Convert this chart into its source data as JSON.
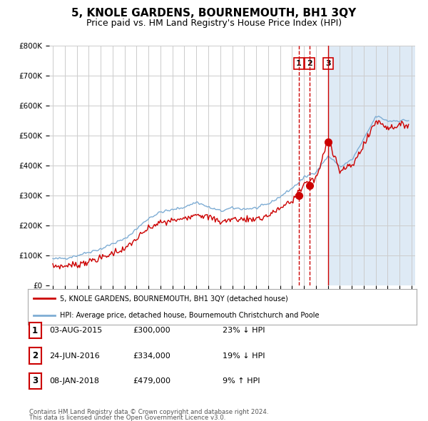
{
  "title": "5, KNOLE GARDENS, BOURNEMOUTH, BH1 3QY",
  "subtitle": "Price paid vs. HM Land Registry's House Price Index (HPI)",
  "title_fontsize": 11,
  "subtitle_fontsize": 9,
  "ylabel_ticks": [
    "£0",
    "£100K",
    "£200K",
    "£300K",
    "£400K",
    "£500K",
    "£600K",
    "£700K",
    "£800K"
  ],
  "ytick_values": [
    0,
    100000,
    200000,
    300000,
    400000,
    500000,
    600000,
    700000,
    800000
  ],
  "ylim": [
    0,
    800000
  ],
  "xlim_start": 1994.7,
  "xlim_end": 2025.3,
  "hpi_color": "#7eadd4",
  "property_color": "#cc0000",
  "sale_line_color": "#cc0000",
  "background_color": "#ffffff",
  "chart_bg_right": "#deeaf5",
  "grid_color": "#cccccc",
  "sales": [
    {
      "num": 1,
      "date": "03-AUG-2015",
      "price": 300000,
      "pct": "23%",
      "dir": "↓",
      "year": 2015.58,
      "linestyle": "dashed"
    },
    {
      "num": 2,
      "date": "24-JUN-2016",
      "price": 334000,
      "pct": "19%",
      "dir": "↓",
      "year": 2016.48,
      "linestyle": "dashed"
    },
    {
      "num": 3,
      "date": "08-JAN-2018",
      "price": 479000,
      "pct": "9%",
      "dir": "↑",
      "year": 2018.02,
      "linestyle": "solid"
    }
  ],
  "legend_line1": "5, KNOLE GARDENS, BOURNEMOUTH, BH1 3QY (detached house)",
  "legend_line2": "HPI: Average price, detached house, Bournemouth Christchurch and Poole",
  "footer1": "Contains HM Land Registry data © Crown copyright and database right 2024.",
  "footer2": "This data is licensed under the Open Government Licence v3.0.",
  "xtick_years": [
    1995,
    1996,
    1997,
    1998,
    1999,
    2000,
    2001,
    2002,
    2003,
    2004,
    2005,
    2006,
    2007,
    2008,
    2009,
    2010,
    2011,
    2012,
    2013,
    2014,
    2015,
    2016,
    2017,
    2018,
    2019,
    2020,
    2021,
    2022,
    2023,
    2024,
    2025
  ]
}
